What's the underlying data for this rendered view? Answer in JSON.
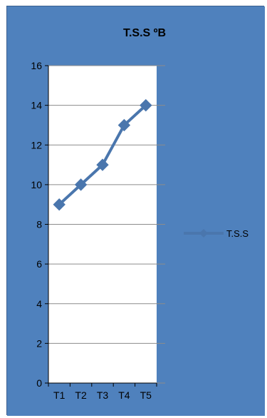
{
  "chart_data": {
    "type": "line",
    "title": "T.S.S ºB",
    "xlabel": "",
    "ylabel": "",
    "categories": [
      "T1",
      "T2",
      "T3",
      "T4",
      "T5"
    ],
    "series": [
      {
        "name": "T.S.S",
        "values": [
          9,
          10,
          11,
          13,
          14
        ]
      }
    ],
    "ylim": [
      0,
      16
    ],
    "yticks": [
      0,
      2,
      4,
      6,
      8,
      10,
      12,
      14,
      16
    ],
    "grid": true,
    "legend": "right",
    "colors": {
      "chart_background": "#4f81bd",
      "plot_background": "#ffffff",
      "series_line": "#4a76ad",
      "gridline": "#8c8c8c"
    }
  }
}
